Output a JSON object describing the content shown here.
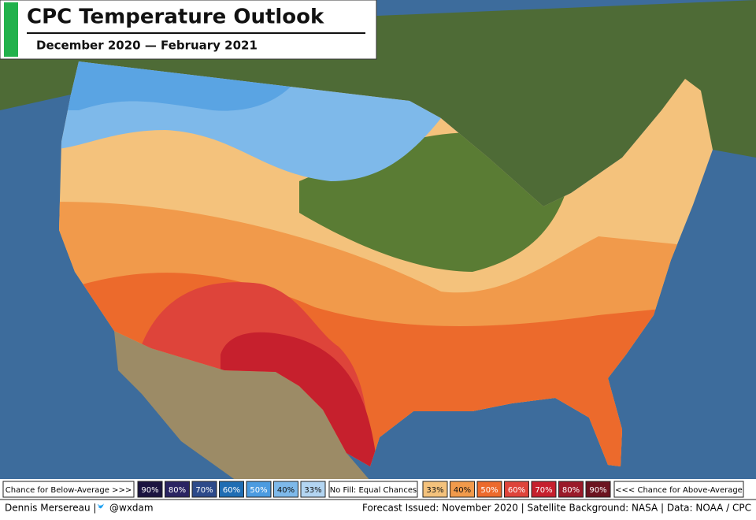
{
  "header": {
    "title": "CPC Temperature Outlook",
    "subtitle": "December 2020 — February 2021"
  },
  "legend": {
    "below_label": "Chance for Below-Average >>>",
    "below": [
      {
        "label": "90%",
        "color": "#1b1440"
      },
      {
        "label": "80%",
        "color": "#2a2462"
      },
      {
        "label": "70%",
        "color": "#2d4a8a"
      },
      {
        "label": "60%",
        "color": "#1f6db3"
      },
      {
        "label": "50%",
        "color": "#4b9be0"
      },
      {
        "label": "40%",
        "color": "#7eb9ea"
      },
      {
        "label": "33%",
        "color": "#b3d5f2"
      }
    ],
    "equal": "No Fill: Equal Chances",
    "above": [
      {
        "label": "33%",
        "color": "#f4c27c"
      },
      {
        "label": "40%",
        "color": "#f19a4b"
      },
      {
        "label": "50%",
        "color": "#ec6a2c"
      },
      {
        "label": "60%",
        "color": "#de443a"
      },
      {
        "label": "70%",
        "color": "#c6202d"
      },
      {
        "label": "80%",
        "color": "#9a1a29"
      },
      {
        "label": "90%",
        "color": "#6c1420"
      }
    ],
    "above_label": "<<< Chance for Above-Average"
  },
  "footer": {
    "author": "Dennis Mersereau |",
    "handle": "@wxdam",
    "credits": "Forecast Issued: November 2020 | Satellite Background: NASA | Data: NOAA / CPC"
  }
}
